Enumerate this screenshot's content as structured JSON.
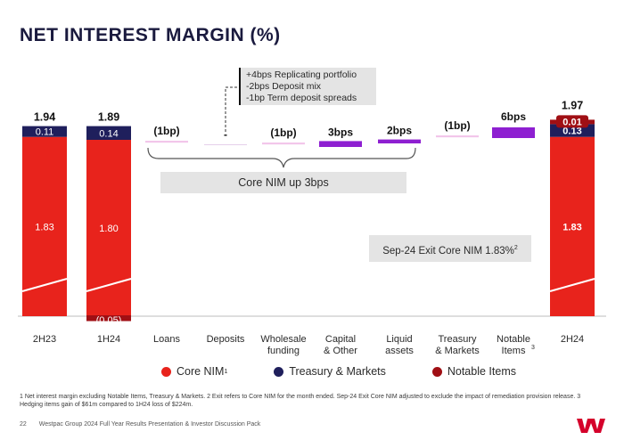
{
  "title": "NET INTEREST MARGIN (%)",
  "chart_data": {
    "type": "waterfall",
    "title": "NET INTEREST MARGIN (%)",
    "categories": [
      "2H23",
      "1H24",
      "Loans",
      "Deposits",
      "Wholesale funding",
      "Capital & Other",
      "Liquid assets",
      "Treasury & Markets",
      "Notable Items",
      "2H24"
    ],
    "category_labels": [
      [
        "2H23"
      ],
      [
        "1H24"
      ],
      [
        "Loans"
      ],
      [
        "Deposits"
      ],
      [
        "Wholesale",
        "funding"
      ],
      [
        "Capital",
        "& Other"
      ],
      [
        "Liquid",
        "assets"
      ],
      [
        "Treasury",
        "& Markets"
      ],
      [
        "Notable",
        "Items"
      ],
      [
        "2H24"
      ]
    ],
    "notable_items_superscript": "3",
    "totals": {
      "2H23": {
        "core_nim": 1.83,
        "treasury_markets": 0.11,
        "notable_items": 0,
        "total": 1.94
      },
      "1H24": {
        "core_nim": 1.8,
        "treasury_markets": 0.14,
        "notable_items": -0.05,
        "total": 1.89
      },
      "2H24": {
        "core_nim": 1.83,
        "treasury_markets": 0.13,
        "notable_items": 0.01,
        "total": 1.97
      }
    },
    "total_labels": {
      "2H23": "1.94",
      "1H24": "1.89",
      "2H24": "1.97"
    },
    "segment_labels": {
      "2H23": {
        "core_nim": "1.83",
        "treasury_markets": "0.11"
      },
      "1H24": {
        "core_nim": "1.80",
        "treasury_markets": "0.14",
        "notable_items": "(0.05)"
      },
      "2H24": {
        "core_nim": "1.83",
        "treasury_markets": "0.13",
        "notable_items": "0.01"
      }
    },
    "movements": [
      {
        "category": "Loans",
        "value_bps": -1,
        "label": "(1bp)",
        "series": "core_nim"
      },
      {
        "category": "Deposits",
        "value_bps": 0,
        "label": "-",
        "series": "core_nim"
      },
      {
        "category": "Wholesale funding",
        "value_bps": -1,
        "label": "(1bp)",
        "series": "core_nim"
      },
      {
        "category": "Capital & Other",
        "value_bps": 3,
        "label": "3bps",
        "series": "core_nim"
      },
      {
        "category": "Liquid assets",
        "value_bps": 2,
        "label": "2bps",
        "series": "core_nim"
      },
      {
        "category": "Treasury & Markets",
        "value_bps": -1,
        "label": "(1bp)",
        "series": "treasury_markets"
      },
      {
        "category": "Notable Items",
        "value_bps": 6,
        "label": "6bps",
        "series": "notable_items"
      }
    ],
    "legend": [
      {
        "label": "Core NIM",
        "superscript": "1",
        "color": "#e8231c"
      },
      {
        "label": "Treasury & Markets",
        "superscript": "",
        "color": "#1f1f5c"
      },
      {
        "label": "Notable Items",
        "superscript": "",
        "color": "#a00f14"
      }
    ],
    "annotations": {
      "deposits_detail": [
        "+4bps Replicating portfolio",
        "-2bps Deposit mix",
        "-1bp Term deposit spreads"
      ],
      "core_nim_summary": "Core NIM up 3bps",
      "exit_core_nim": "Sep-24 Exit Core NIM 1.83%",
      "exit_core_nim_superscript": "2"
    }
  },
  "colors": {
    "core_nim": "#e8231c",
    "treasury_markets": "#1f1f5c",
    "notable_items": "#a00f14",
    "movement_negative": "#f2c6ea",
    "movement_positive": "#8e1fd1",
    "brand": "#d5002b"
  },
  "footnote": "1 Net interest margin excluding Notable Items, Treasury & Markets. 2 Exit refers to Core NIM for the month ended. Sep-24 Exit Core NIM adjusted to exclude the impact of remediation provision release. 3 Hedging items gain of $61m compared to 1H24 loss of $224m.",
  "footer": {
    "page_number": "22",
    "doc_title": "Westpac Group 2024 Full Year Results Presentation & Investor Discussion Pack"
  },
  "logo_icon": "westpac-w-logo"
}
